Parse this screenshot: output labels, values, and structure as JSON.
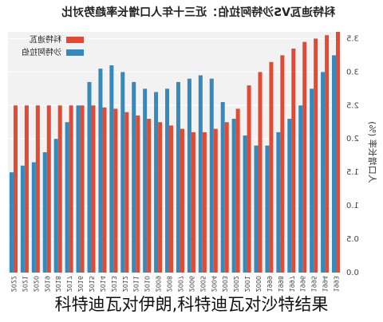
{
  "chart_data": {
    "type": "bar",
    "title": "科特迪瓦VS沙特阿拉伯：近三十年人口增长率趋势对比",
    "ylabel": "人口增长率 (%)",
    "categories": [
      "1993",
      "1994",
      "1995",
      "1996",
      "1997",
      "1998",
      "1999",
      "2000",
      "2001",
      "2002",
      "2003",
      "2004",
      "2005",
      "2006",
      "2007",
      "2008",
      "2009",
      "2010",
      "2011",
      "2012",
      "2013",
      "2014",
      "2015",
      "2016",
      "2017",
      "2018",
      "2019",
      "2020",
      "2021",
      "2022"
    ],
    "series": [
      {
        "name": "科特迪瓦",
        "color": "#e24a33",
        "values": [
          3.6,
          3.55,
          3.5,
          3.45,
          3.35,
          3.25,
          3.15,
          3.0,
          2.8,
          2.45,
          2.25,
          2.15,
          2.1,
          2.1,
          2.15,
          2.2,
          2.25,
          2.3,
          2.35,
          2.4,
          2.45,
          2.47,
          2.5,
          2.5,
          2.5,
          2.5,
          2.5,
          2.5,
          2.5,
          2.5
        ]
      },
      {
        "name": "沙特阿拉伯",
        "color": "#348abd",
        "values": [
          3.25,
          3.0,
          2.75,
          2.5,
          2.3,
          2.1,
          1.9,
          1.9,
          2.05,
          2.3,
          2.55,
          2.9,
          2.95,
          2.9,
          2.85,
          2.75,
          2.7,
          2.75,
          2.85,
          3.0,
          3.1,
          3.05,
          2.85,
          2.5,
          2.25,
          2.0,
          1.8,
          1.65,
          1.6,
          1.5
        ]
      }
    ],
    "ylim": [
      0,
      3.6
    ],
    "yticks": [
      {
        "value": 0,
        "label": "0.0"
      },
      {
        "value": 0.5,
        "label": "0.5"
      },
      {
        "value": 1,
        "label": "1.0"
      },
      {
        "value": 1.5,
        "label": "1.5"
      },
      {
        "value": 2,
        "label": "2.0"
      },
      {
        "value": 2.5,
        "label": "2.5"
      },
      {
        "value": 3,
        "label": "3.0"
      },
      {
        "value": 3.5,
        "label": "3.5"
      }
    ],
    "grid": true,
    "legend": "upper right",
    "mirrored": true
  },
  "caption": "科特迪瓦对伊朗,科特迪瓦对沙特结果"
}
